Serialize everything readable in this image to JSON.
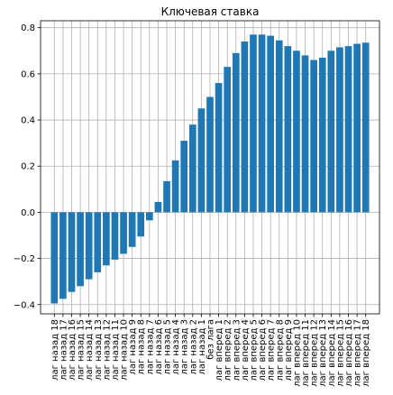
{
  "chart_data": {
    "type": "bar",
    "title": "Ключевая ставка",
    "xlabel": "",
    "ylabel": "",
    "ylim": [
      -0.44,
      0.83
    ],
    "yticks": [
      -0.4,
      -0.2,
      0.0,
      0.2,
      0.4,
      0.6,
      0.8
    ],
    "ytick_labels": [
      "−0.4",
      "−0.2",
      "0.0",
      "0.2",
      "0.4",
      "0.6",
      "0.8"
    ],
    "grid": true,
    "bar_color": "#1f77b4",
    "categories": [
      "лаг назад 18",
      "лаг назад 17",
      "лаг назад 16",
      "лаг назад 15",
      "лаг назад 14",
      "лаг назад 13",
      "лаг назад 12",
      "лаг назад 11",
      "лаг назад 10",
      "лаг назад 9",
      "лаг назад 8",
      "лаг назад 7",
      "лаг назад 6",
      "лаг назад 5",
      "лаг назад 4",
      "лаг назад 3",
      "лаг назад 2",
      "лаг назад 1",
      "без лага",
      "лаг вперед 1",
      "лаг вперед 2",
      "лаг вперед 3",
      "лаг вперед 4",
      "лаг вперед 5",
      "лаг вперед 6",
      "лаг вперед 7",
      "лаг вперед 8",
      "лаг вперед 9",
      "лаг вперед 10",
      "лаг вперед 11",
      "лаг вперед 12",
      "лаг вперед 13",
      "лаг вперед 14",
      "лаг вперед 15",
      "лаг вперед 16",
      "лаг вперед 17",
      "лаг вперед 18"
    ],
    "values": [
      -0.395,
      -0.375,
      -0.345,
      -0.32,
      -0.29,
      -0.26,
      -0.23,
      -0.205,
      -0.18,
      -0.15,
      -0.105,
      -0.035,
      0.045,
      0.135,
      0.225,
      0.31,
      0.38,
      0.45,
      0.5,
      0.56,
      0.63,
      0.69,
      0.74,
      0.77,
      0.77,
      0.765,
      0.745,
      0.72,
      0.7,
      0.68,
      0.66,
      0.67,
      0.7,
      0.715,
      0.72,
      0.73,
      0.735
    ]
  }
}
